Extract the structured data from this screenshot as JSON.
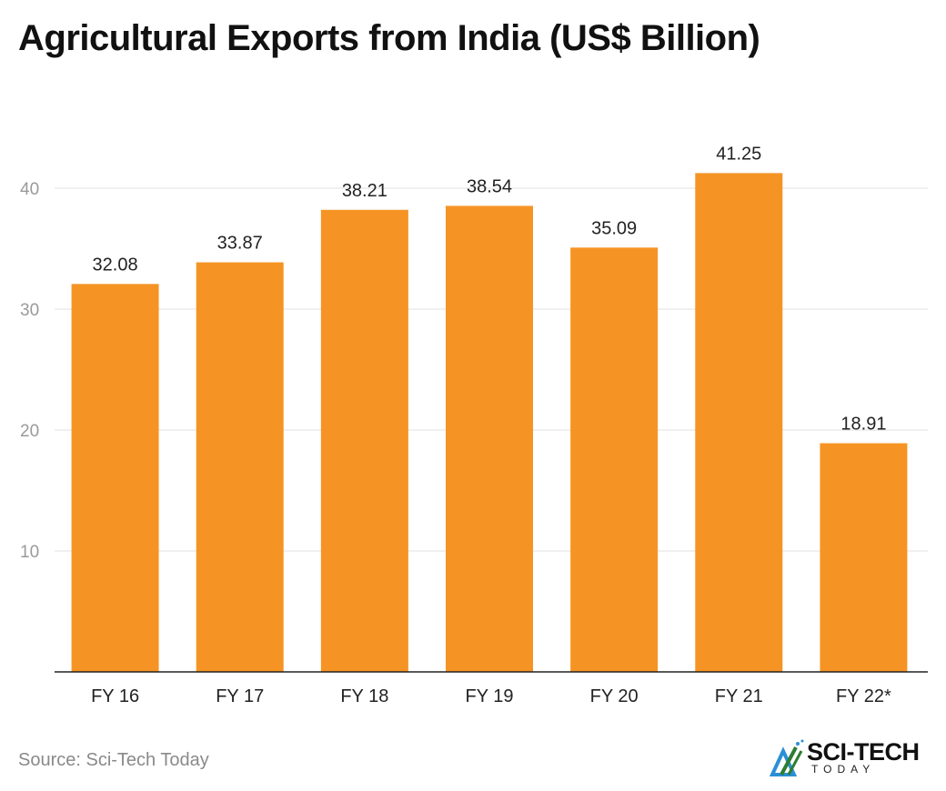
{
  "title": "Agricultural Exports from India (US$ Billion)",
  "source": "Source: Sci-Tech Today",
  "logo": {
    "text": "SCI-TECH",
    "subtext": "TODAY"
  },
  "colors": {
    "bar": "#F59424",
    "grid": "#E2E2E2",
    "axis": "#222222",
    "tick_label": "#9A9A9A"
  },
  "chart_data": {
    "type": "bar",
    "title": "Agricultural Exports from India (US$ Billion)",
    "categories": [
      "FY 16",
      "FY 17",
      "FY 18",
      "FY 19",
      "FY 20",
      "FY 21",
      "FY 22*"
    ],
    "values": [
      32.08,
      33.87,
      38.21,
      38.54,
      35.09,
      41.25,
      18.91
    ],
    "data_labels": [
      "32.08",
      "33.87",
      "38.21",
      "38.54",
      "35.09",
      "41.25",
      "18.91"
    ],
    "xlabel": "",
    "ylabel": "",
    "ylim": [
      0,
      45
    ],
    "yticks": [
      10,
      20,
      30,
      40
    ],
    "grid": true,
    "legend": "none"
  }
}
